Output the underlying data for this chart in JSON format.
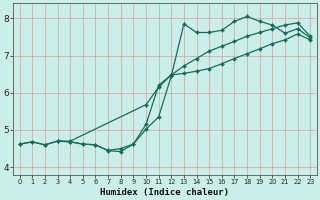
{
  "xlabel": "Humidex (Indice chaleur)",
  "background_color": "#cceee8",
  "grid_color": "#d4a0a0",
  "line_color": "#1a6b5a",
  "xlim": [
    -0.5,
    23.5
  ],
  "ylim": [
    3.8,
    8.4
  ],
  "xticks": [
    0,
    1,
    2,
    3,
    4,
    5,
    6,
    7,
    8,
    9,
    10,
    11,
    12,
    13,
    14,
    15,
    16,
    17,
    18,
    19,
    20,
    21,
    22,
    23
  ],
  "yticks": [
    4,
    5,
    6,
    7,
    8
  ],
  "line1_x": [
    0,
    1,
    2,
    3,
    4,
    5,
    6,
    7,
    8,
    9,
    10,
    11,
    12,
    13,
    14,
    15,
    16,
    17,
    18,
    19,
    20,
    21,
    22,
    23
  ],
  "line1_y": [
    4.62,
    4.68,
    4.6,
    4.7,
    4.68,
    4.62,
    4.6,
    4.44,
    4.42,
    4.62,
    5.02,
    5.35,
    6.45,
    7.85,
    7.62,
    7.62,
    7.68,
    7.92,
    8.05,
    7.92,
    7.82,
    7.6,
    7.72,
    7.48
  ],
  "line2_x": [
    0,
    1,
    2,
    3,
    4,
    5,
    6,
    7,
    8,
    9,
    10,
    11,
    12,
    13,
    14,
    15,
    16,
    17,
    18,
    19,
    20,
    21,
    22,
    23
  ],
  "line2_y": [
    4.62,
    4.68,
    4.6,
    4.7,
    4.68,
    4.62,
    4.6,
    4.45,
    4.5,
    4.62,
    5.15,
    6.2,
    6.48,
    6.52,
    6.58,
    6.65,
    6.78,
    6.92,
    7.05,
    7.18,
    7.32,
    7.42,
    7.58,
    7.42
  ],
  "line3_x": [
    3,
    4,
    10,
    11,
    12,
    13,
    14,
    15,
    16,
    17,
    18,
    19,
    20,
    21,
    22,
    23
  ],
  "line3_y": [
    4.7,
    4.7,
    5.68,
    6.15,
    6.48,
    6.72,
    6.92,
    7.12,
    7.25,
    7.38,
    7.52,
    7.62,
    7.72,
    7.82,
    7.88,
    7.52
  ]
}
